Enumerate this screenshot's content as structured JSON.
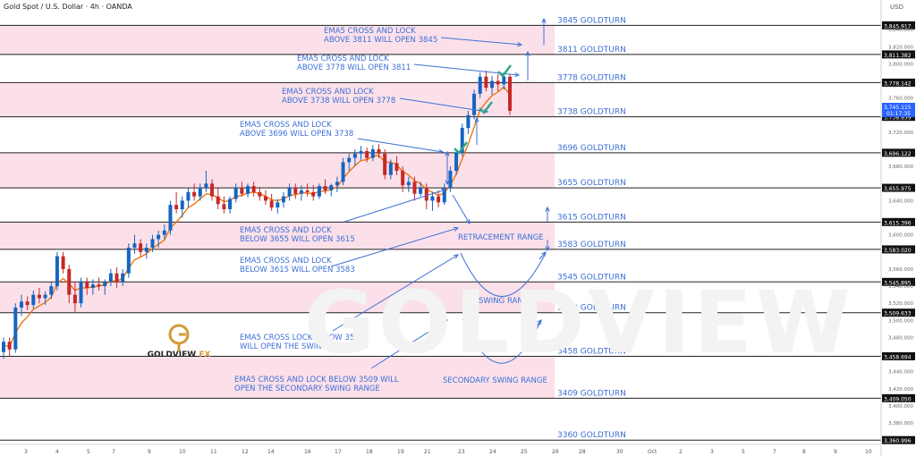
{
  "header": {
    "symbol": "Gold Spot / U.S. Dollar · 4h · OANDA",
    "currency": "USD"
  },
  "watermark": "GOLDVIEW",
  "logo": {
    "name": "GOLDVIEW",
    "suffix": "FX"
  },
  "colors": {
    "zone": "#fbe0ea",
    "candle_up": "#1565c0",
    "candle_down": "#c62828",
    "ema": "#ef6c00",
    "annotation": "#3d6fd6",
    "check": "#2aa88a"
  },
  "chart_data": {
    "type": "candlestick",
    "ylim": [
      3355,
      3860
    ],
    "x_dates": [
      "3",
      "4",
      "5",
      "7",
      "9",
      "10",
      "11",
      "12",
      "14",
      "16",
      "17",
      "18",
      "19",
      "21",
      "23",
      "24",
      "25",
      "26",
      "28",
      "30",
      "Oct",
      "2",
      "3",
      "5",
      "7",
      "8",
      "9",
      "10"
    ],
    "levels": [
      {
        "value": 3845,
        "label": "3845 GOLDTURN",
        "price_tag": "3,845.917"
      },
      {
        "value": 3811,
        "label": "3811 GOLDTURN",
        "price_tag": "3,811.382"
      },
      {
        "value": 3778,
        "label": "3778 GOLDTURN",
        "price_tag": "3,778.142"
      },
      {
        "value": 3738,
        "label": "3738 GOLDTURN",
        "price_tag": "3,738.859"
      },
      {
        "value": 3696,
        "label": "3696 GOLDTURN",
        "price_tag": "3,696.122"
      },
      {
        "value": 3655,
        "label": "3655 GOLDTURN",
        "price_tag": "3,655.975"
      },
      {
        "value": 3615,
        "label": "3615 GOLDTURN",
        "price_tag": "3,615.396"
      },
      {
        "value": 3583,
        "label": "3583 GOLDTURN",
        "price_tag": "3,583.020"
      },
      {
        "value": 3545,
        "label": "3545 GOLDTURN",
        "price_tag": "3,545.895"
      },
      {
        "value": 3509,
        "label": "3509 GOLDTURN",
        "price_tag": "3,509.633"
      },
      {
        "value": 3458,
        "label": "3458 GOLDTURN",
        "price_tag": "3,458.694"
      },
      {
        "value": 3409,
        "label": "3409 GOLDTURN",
        "price_tag": "3,409.050"
      },
      {
        "value": 3360,
        "label": "3360 GOLDTURN",
        "price_tag": "3,360.996"
      }
    ],
    "zones": [
      [
        3811,
        3845
      ],
      [
        3738,
        3778
      ],
      [
        3655,
        3696
      ],
      [
        3583,
        3615
      ],
      [
        3509,
        3545
      ],
      [
        3409,
        3458
      ]
    ],
    "axis_ticks": [
      "3,840.000",
      "3,820.000",
      "3,800.000",
      "3,760.000",
      "3,720.000",
      "3,680.000",
      "3,640.000",
      "3,600.000",
      "3,560.000",
      "3,540.000",
      "3,520.000",
      "3,500.000",
      "3,480.000",
      "3,440.000",
      "3,420.000",
      "3,400.000",
      "3,380.000"
    ],
    "current_price": {
      "value": 3745,
      "price": "3,745.115",
      "countdown": "01:17:35"
    },
    "range_labels": [
      "RETRACEMENT RANGE",
      "SWING RANGE",
      "SECONDARY SWING RANGE"
    ],
    "annotations": [
      {
        "lines": [
          "EMA5 CROSS AND LOCK",
          "ABOVE 3811 WILL OPEN 3845"
        ]
      },
      {
        "lines": [
          "EMA5 CROSS AND LOCK",
          "ABOVE 3778 WILL OPEN 3811"
        ]
      },
      {
        "lines": [
          "EMA5 CROSS AND LOCK",
          "ABOVE 3738 WILL OPEN 3778"
        ]
      },
      {
        "lines": [
          "EMA5 CROSS AND LOCK",
          "ABOVE 3696 WILL OPEN 3738"
        ]
      },
      {
        "lines": [
          "EMA5 CROSS AND LOCK",
          "BELOW 3655 WILL OPEN 3615"
        ]
      },
      {
        "lines": [
          "EMA5 CROSS AND LOCK",
          "BELOW 3615 WILL OPEN 3583"
        ]
      },
      {
        "lines": [
          "EMA5 CROSS LOCK BELOW 3583",
          "WILL OPEN THE SWING RANGE"
        ]
      },
      {
        "lines": [
          "EMA5 CROSS AND LOCK BELOW 3509 WILL",
          "OPEN THE SECONDARY SWING RANGE"
        ]
      }
    ],
    "candles": [
      [
        3463,
        3480,
        3455,
        3475
      ],
      [
        3475,
        3480,
        3458,
        3466
      ],
      [
        3466,
        3520,
        3462,
        3515
      ],
      [
        3515,
        3530,
        3505,
        3522
      ],
      [
        3522,
        3528,
        3512,
        3518
      ],
      [
        3518,
        3535,
        3514,
        3530
      ],
      [
        3530,
        3538,
        3520,
        3526
      ],
      [
        3526,
        3534,
        3518,
        3530
      ],
      [
        3530,
        3545,
        3525,
        3540
      ],
      [
        3540,
        3580,
        3535,
        3575
      ],
      [
        3575,
        3580,
        3555,
        3560
      ],
      [
        3560,
        3565,
        3520,
        3530
      ],
      [
        3530,
        3545,
        3510,
        3520
      ],
      [
        3520,
        3550,
        3515,
        3545
      ],
      [
        3545,
        3550,
        3530,
        3538
      ],
      [
        3538,
        3548,
        3530,
        3542
      ],
      [
        3542,
        3550,
        3535,
        3540
      ],
      [
        3540,
        3548,
        3530,
        3545
      ],
      [
        3545,
        3560,
        3540,
        3555
      ],
      [
        3555,
        3562,
        3538,
        3545
      ],
      [
        3545,
        3560,
        3540,
        3555
      ],
      [
        3555,
        3590,
        3550,
        3585
      ],
      [
        3585,
        3600,
        3578,
        3590
      ],
      [
        3590,
        3595,
        3575,
        3580
      ],
      [
        3580,
        3590,
        3572,
        3585
      ],
      [
        3585,
        3600,
        3580,
        3595
      ],
      [
        3595,
        3605,
        3585,
        3600
      ],
      [
        3600,
        3612,
        3595,
        3605
      ],
      [
        3605,
        3640,
        3600,
        3635
      ],
      [
        3635,
        3650,
        3625,
        3630
      ],
      [
        3630,
        3645,
        3620,
        3640
      ],
      [
        3640,
        3655,
        3632,
        3650
      ],
      [
        3650,
        3660,
        3640,
        3645
      ],
      [
        3645,
        3660,
        3640,
        3655
      ],
      [
        3655,
        3675,
        3650,
        3660
      ],
      [
        3660,
        3665,
        3640,
        3645
      ],
      [
        3645,
        3655,
        3630,
        3636
      ],
      [
        3636,
        3645,
        3625,
        3630
      ],
      [
        3630,
        3645,
        3625,
        3642
      ],
      [
        3642,
        3660,
        3638,
        3655
      ],
      [
        3655,
        3662,
        3645,
        3648
      ],
      [
        3648,
        3660,
        3644,
        3657
      ],
      [
        3657,
        3662,
        3645,
        3650
      ],
      [
        3650,
        3656,
        3640,
        3645
      ],
      [
        3645,
        3652,
        3635,
        3640
      ],
      [
        3640,
        3648,
        3628,
        3632
      ],
      [
        3632,
        3642,
        3625,
        3638
      ],
      [
        3638,
        3650,
        3632,
        3645
      ],
      [
        3645,
        3660,
        3640,
        3655
      ],
      [
        3655,
        3660,
        3642,
        3648
      ],
      [
        3648,
        3658,
        3640,
        3652
      ],
      [
        3652,
        3660,
        3645,
        3650
      ],
      [
        3650,
        3658,
        3640,
        3645
      ],
      [
        3645,
        3660,
        3642,
        3657
      ],
      [
        3657,
        3665,
        3648,
        3652
      ],
      [
        3652,
        3660,
        3645,
        3658
      ],
      [
        3658,
        3668,
        3650,
        3662
      ],
      [
        3662,
        3690,
        3658,
        3685
      ],
      [
        3685,
        3695,
        3675,
        3690
      ],
      [
        3690,
        3700,
        3680,
        3695
      ],
      [
        3695,
        3704,
        3688,
        3698
      ],
      [
        3698,
        3702,
        3685,
        3690
      ],
      [
        3690,
        3705,
        3686,
        3700
      ],
      [
        3700,
        3706,
        3690,
        3695
      ],
      [
        3695,
        3700,
        3665,
        3670
      ],
      [
        3670,
        3688,
        3665,
        3684
      ],
      [
        3684,
        3692,
        3670,
        3675
      ],
      [
        3675,
        3680,
        3650,
        3658
      ],
      [
        3658,
        3668,
        3650,
        3662
      ],
      [
        3662,
        3668,
        3640,
        3648
      ],
      [
        3648,
        3662,
        3645,
        3655
      ],
      [
        3655,
        3660,
        3630,
        3640
      ],
      [
        3640,
        3650,
        3628,
        3645
      ],
      [
        3645,
        3652,
        3632,
        3638
      ],
      [
        3638,
        3660,
        3635,
        3655
      ],
      [
        3655,
        3680,
        3650,
        3675
      ],
      [
        3675,
        3700,
        3670,
        3696
      ],
      [
        3696,
        3730,
        3692,
        3725
      ],
      [
        3725,
        3745,
        3718,
        3740
      ],
      [
        3740,
        3770,
        3735,
        3765
      ],
      [
        3765,
        3790,
        3760,
        3785
      ],
      [
        3785,
        3792,
        3768,
        3772
      ],
      [
        3772,
        3786,
        3764,
        3780
      ],
      [
        3780,
        3788,
        3768,
        3776
      ],
      [
        3776,
        3790,
        3770,
        3785
      ],
      [
        3785,
        3788,
        3740,
        3745
      ]
    ],
    "ema": [
      3470,
      3470,
      3485,
      3497,
      3504,
      3513,
      3517,
      3521,
      3527,
      3543,
      3549,
      3543,
      3535,
      3538,
      3538,
      3539,
      3540,
      3542,
      3546,
      3546,
      3549,
      3561,
      3571,
      3574,
      3578,
      3584,
      3589,
      3594,
      3608,
      3615,
      3623,
      3632,
      3636,
      3642,
      3648,
      3647,
      3643,
      3639,
      3640,
      3645,
      3646,
      3649,
      3650,
      3648,
      3645,
      3641,
      3640,
      3642,
      3646,
      3647,
      3649,
      3649,
      3648,
      3651,
      3651,
      3653,
      3656,
      3666,
      3674,
      3681,
      3687,
      3688,
      3692,
      3693,
      3685,
      3685,
      3682,
      3674,
      3670,
      3663,
      3660,
      3653,
      3650,
      3646,
      3649,
      3658,
      3671,
      3689,
      3706,
      3726,
      3746,
      3755,
      3763,
      3767,
      3773,
      3764
    ]
  }
}
